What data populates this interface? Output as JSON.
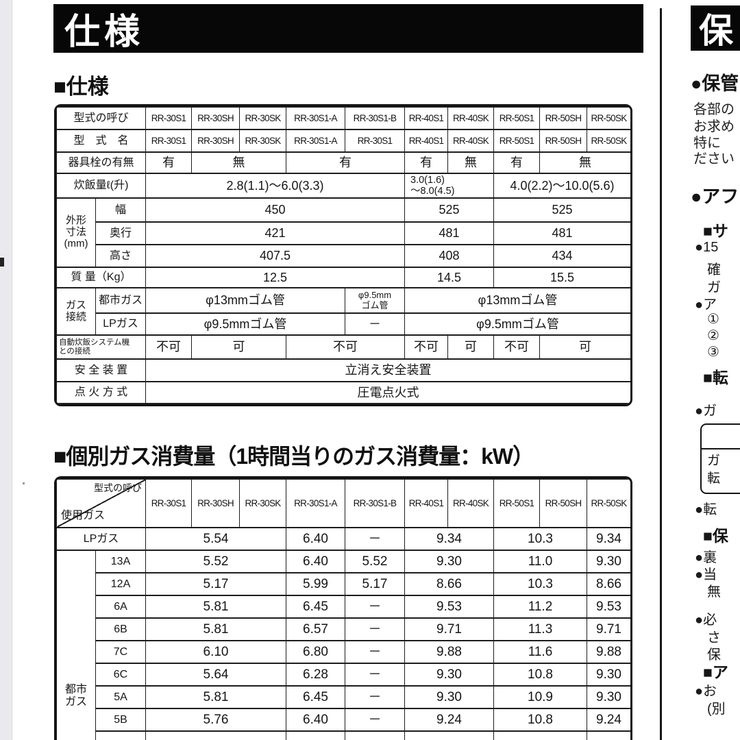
{
  "page": {
    "banner_title": "仕様",
    "section1_heading": "■仕様",
    "section2_heading": "■個別ガス消費量（1時間当りのガス消費量：kW）"
  },
  "spec_table": {
    "rows": [
      {
        "cells": [
          {
            "t": "型式の呼び",
            "c": "lbl",
            "cs": 2,
            "n": "row-label"
          },
          {
            "t": "RR-30S1",
            "c": "mh",
            "n": "model-header"
          },
          {
            "t": "RR-30SH",
            "c": "mh",
            "n": "model-header"
          },
          {
            "t": "RR-30SK",
            "c": "mh",
            "n": "model-header"
          },
          {
            "t": "RR-30S1-A",
            "c": "mh",
            "n": "model-header"
          },
          {
            "t": "RR-30S1-B",
            "c": "mh",
            "n": "model-header"
          },
          {
            "t": "RR-40S1",
            "c": "mh",
            "n": "model-header"
          },
          {
            "t": "RR-40SK",
            "c": "mh",
            "n": "model-header"
          },
          {
            "t": "RR-50S1",
            "c": "mh",
            "n": "model-header"
          },
          {
            "t": "RR-50SH",
            "c": "mh",
            "n": "model-header"
          },
          {
            "t": "RR-50SK",
            "c": "mh",
            "n": "model-header"
          }
        ]
      },
      {
        "cells": [
          {
            "t": "型　式　名",
            "c": "lbl",
            "cs": 2,
            "n": "row-label"
          },
          {
            "t": "RR-30S1",
            "c": "mh"
          },
          {
            "t": "RR-30SH",
            "c": "mh"
          },
          {
            "t": "RR-30SK",
            "c": "mh"
          },
          {
            "t": "RR-30S1-A",
            "c": "mh"
          },
          {
            "t": "RR-30S1",
            "c": "mh"
          },
          {
            "t": "RR-40S1",
            "c": "mh"
          },
          {
            "t": "RR-40SK",
            "c": "mh"
          },
          {
            "t": "RR-50S1",
            "c": "mh"
          },
          {
            "t": "RR-50SH",
            "c": "mh"
          },
          {
            "t": "RR-50SK",
            "c": "mh"
          }
        ]
      },
      {
        "cells": [
          {
            "t": "器具栓の有無",
            "c": "lbl",
            "cs": 2,
            "n": "row-label"
          },
          {
            "t": "有"
          },
          {
            "t": "無",
            "cs": 2
          },
          {
            "t": "有",
            "cs": 2
          },
          {
            "t": "有"
          },
          {
            "t": "無"
          },
          {
            "t": "有"
          },
          {
            "t": "無",
            "cs": 2
          }
        ]
      },
      {
        "cells": [
          {
            "t": "炊飯量ℓ(升)",
            "c": "lbl",
            "cs": 2,
            "n": "row-label"
          },
          {
            "t": "2.8(1.1)～6.0(3.3)",
            "cs": 5
          },
          {
            "t": "3.0(1.6)\n～8.0(4.5)",
            "cs": 2,
            "c": "two"
          },
          {
            "t": "4.0(2.2)～10.0(5.6)",
            "cs": 3
          }
        ]
      },
      {
        "cells": [
          {
            "t": "外形\n寸法\n(mm)",
            "c": "vlbl",
            "rs": 3,
            "n": "row-label"
          },
          {
            "t": "幅",
            "c": "lbl",
            "n": "row-label"
          },
          {
            "t": "450",
            "cs": 5
          },
          {
            "t": "525",
            "cs": 2
          },
          {
            "t": "525",
            "cs": 3
          }
        ]
      },
      {
        "cells": [
          {
            "t": "奥行",
            "c": "lbl",
            "n": "row-label"
          },
          {
            "t": "421",
            "cs": 5
          },
          {
            "t": "481",
            "cs": 2
          },
          {
            "t": "481",
            "cs": 3
          }
        ]
      },
      {
        "cells": [
          {
            "t": "高さ",
            "c": "lbl",
            "n": "row-label"
          },
          {
            "t": "407.5",
            "cs": 5
          },
          {
            "t": "408",
            "cs": 2
          },
          {
            "t": "434",
            "cs": 3
          }
        ]
      },
      {
        "cells": [
          {
            "t": "質 量（Kg）",
            "c": "lbl",
            "cs": 2,
            "n": "row-label"
          },
          {
            "t": "12.5",
            "cs": 5
          },
          {
            "t": "14.5",
            "cs": 2
          },
          {
            "t": "15.5",
            "cs": 3
          }
        ]
      },
      {
        "cells": [
          {
            "t": "ガス\n接続",
            "c": "vlbl",
            "rs": 2,
            "n": "row-label"
          },
          {
            "t": "都市ガス",
            "c": "glbl",
            "n": "row-label"
          },
          {
            "t": "φ13mmゴム管",
            "cs": 4
          },
          {
            "t": "φ9.5mm\nゴム管",
            "c": "small"
          },
          {
            "t": "φ13mmゴム管",
            "cs": 5
          }
        ]
      },
      {
        "cells": [
          {
            "t": "LPガス",
            "c": "glbl",
            "n": "row-label"
          },
          {
            "t": "φ9.5mmゴム管",
            "cs": 4
          },
          {
            "t": "－"
          },
          {
            "t": "φ9.5mmゴム管",
            "cs": 5
          }
        ]
      },
      {
        "cells": [
          {
            "t": "自動炊飯システム機\nとの接続",
            "c": "tiny",
            "cs": 2,
            "n": "row-label"
          },
          {
            "t": "不可"
          },
          {
            "t": "可",
            "cs": 2
          },
          {
            "t": "不可",
            "cs": 2
          },
          {
            "t": "不可"
          },
          {
            "t": "可"
          },
          {
            "t": "不可"
          },
          {
            "t": "可",
            "cs": 2
          }
        ]
      },
      {
        "cells": [
          {
            "t": "安 全 装 置",
            "c": "lbl",
            "cs": 2,
            "n": "row-label"
          },
          {
            "t": "立消え安全装置",
            "cs": 10
          }
        ]
      },
      {
        "cells": [
          {
            "t": "点 火 方 式",
            "c": "lbl",
            "cs": 2,
            "n": "row-label"
          },
          {
            "t": "圧電点火式",
            "cs": 10
          }
        ]
      }
    ]
  },
  "consumption_table": {
    "rows": [
      {
        "cells": [
          {
            "t": "型式の呼び\n使用ガス",
            "c": "diag",
            "cs": 2,
            "n": "diagonal-header"
          },
          {
            "t": "RR-30S1",
            "c": "mh2",
            "n": "model-header"
          },
          {
            "t": "RR-30SH",
            "c": "mh2",
            "n": "model-header"
          },
          {
            "t": "RR-30SK",
            "c": "mh2",
            "n": "model-header"
          },
          {
            "t": "RR-30S1-A",
            "c": "mh2",
            "n": "model-header"
          },
          {
            "t": "RR-30S1-B",
            "c": "mh2",
            "n": "model-header"
          },
          {
            "t": "RR-40S1",
            "c": "mh2",
            "n": "model-header"
          },
          {
            "t": "RR-40SK",
            "c": "mh2",
            "n": "model-header"
          },
          {
            "t": "RR-50S1",
            "c": "mh2",
            "n": "model-header"
          },
          {
            "t": "RR-50SH",
            "c": "mh2",
            "n": "model-header"
          },
          {
            "t": "RR-50SK",
            "c": "mh2",
            "n": "model-header"
          }
        ]
      },
      {
        "cells": [
          {
            "t": "LPガス",
            "c": "glbl",
            "cs": 2,
            "n": "row-label"
          },
          {
            "t": "5.54",
            "cs": 3
          },
          {
            "t": "6.40"
          },
          {
            "t": "－"
          },
          {
            "t": "9.34",
            "cs": 2
          },
          {
            "t": "10.3",
            "cs": 2
          },
          {
            "t": "9.34"
          }
        ]
      },
      {
        "cells": [
          {
            "t": "都市\nガス",
            "c": "city",
            "rs": 9,
            "n": "row-label"
          },
          {
            "t": "13A",
            "c": "glbl",
            "n": "row-label"
          },
          {
            "t": "5.52",
            "cs": 3
          },
          {
            "t": "6.40"
          },
          {
            "t": "5.52"
          },
          {
            "t": "9.30",
            "cs": 2
          },
          {
            "t": "11.0",
            "cs": 2
          },
          {
            "t": "9.30"
          }
        ]
      },
      {
        "cells": [
          {
            "t": "12A",
            "c": "glbl",
            "n": "row-label"
          },
          {
            "t": "5.17",
            "cs": 3
          },
          {
            "t": "5.99"
          },
          {
            "t": "5.17"
          },
          {
            "t": "8.66",
            "cs": 2
          },
          {
            "t": "10.3",
            "cs": 2
          },
          {
            "t": "8.66"
          }
        ]
      },
      {
        "cells": [
          {
            "t": "6A",
            "c": "glbl",
            "n": "row-label"
          },
          {
            "t": "5.81",
            "cs": 3
          },
          {
            "t": "6.45"
          },
          {
            "t": "－"
          },
          {
            "t": "9.53",
            "cs": 2
          },
          {
            "t": "11.2",
            "cs": 2
          },
          {
            "t": "9.53"
          }
        ]
      },
      {
        "cells": [
          {
            "t": "6B",
            "c": "glbl",
            "n": "row-label"
          },
          {
            "t": "5.81",
            "cs": 3
          },
          {
            "t": "6.57"
          },
          {
            "t": "－"
          },
          {
            "t": "9.71",
            "cs": 2
          },
          {
            "t": "11.3",
            "cs": 2
          },
          {
            "t": "9.71"
          }
        ]
      },
      {
        "cells": [
          {
            "t": "7C",
            "c": "glbl",
            "n": "row-label"
          },
          {
            "t": "6.10",
            "cs": 3
          },
          {
            "t": "6.80"
          },
          {
            "t": "－"
          },
          {
            "t": "9.88",
            "cs": 2
          },
          {
            "t": "11.6",
            "cs": 2
          },
          {
            "t": "9.88"
          }
        ]
      },
      {
        "cells": [
          {
            "t": "6C",
            "c": "glbl",
            "n": "row-label"
          },
          {
            "t": "5.64",
            "cs": 3
          },
          {
            "t": "6.28"
          },
          {
            "t": "－"
          },
          {
            "t": "9.30",
            "cs": 2
          },
          {
            "t": "10.8",
            "cs": 2
          },
          {
            "t": "9.30"
          }
        ]
      },
      {
        "cells": [
          {
            "t": "5A",
            "c": "glbl",
            "n": "row-label"
          },
          {
            "t": "5.81",
            "cs": 3
          },
          {
            "t": "6.45"
          },
          {
            "t": "－"
          },
          {
            "t": "9.30",
            "cs": 2
          },
          {
            "t": "10.9",
            "cs": 2
          },
          {
            "t": "9.30"
          }
        ]
      },
      {
        "cells": [
          {
            "t": "5B",
            "c": "glbl",
            "n": "row-label"
          },
          {
            "t": "5.76",
            "cs": 3
          },
          {
            "t": "6.40"
          },
          {
            "t": "－"
          },
          {
            "t": "9.24",
            "cs": 2
          },
          {
            "t": "10.8",
            "cs": 2
          },
          {
            "t": "9.24"
          }
        ]
      },
      {
        "cells": [
          {
            "t": ""
          },
          {
            "t": "",
            "cs": 3
          },
          {
            "t": ""
          },
          {
            "t": ""
          },
          {
            "t": "",
            "cs": 2
          },
          {
            "t": "",
            "cs": 2
          },
          {
            "t": ""
          }
        ]
      }
    ]
  },
  "sidebar": {
    "banner_title": "保",
    "box": {
      "line1": "ガ",
      "line2": "転"
    },
    "lines": [
      {
        "text": "●保管"
      },
      {
        "text": "各部の"
      },
      {
        "text": "お求め"
      },
      {
        "text": "特に"
      },
      {
        "text": "ださい"
      },
      {
        "text": "●アフ"
      },
      {
        "text": "■サ"
      },
      {
        "text": "●15"
      },
      {
        "text": "確"
      },
      {
        "text": "ガ"
      },
      {
        "text": "●ア"
      },
      {
        "text": "①"
      },
      {
        "text": "②"
      },
      {
        "text": "③"
      },
      {
        "text": "■転"
      },
      {
        "text": "●ガ"
      },
      {
        "text": "●転"
      },
      {
        "text": "■保"
      },
      {
        "text": "●裏"
      },
      {
        "text": "●当"
      },
      {
        "text": "無"
      },
      {
        "text": "●必"
      },
      {
        "text": "さ"
      },
      {
        "text": "保"
      },
      {
        "text": "■ア"
      },
      {
        "text": "●お"
      },
      {
        "text": "(別"
      }
    ]
  }
}
